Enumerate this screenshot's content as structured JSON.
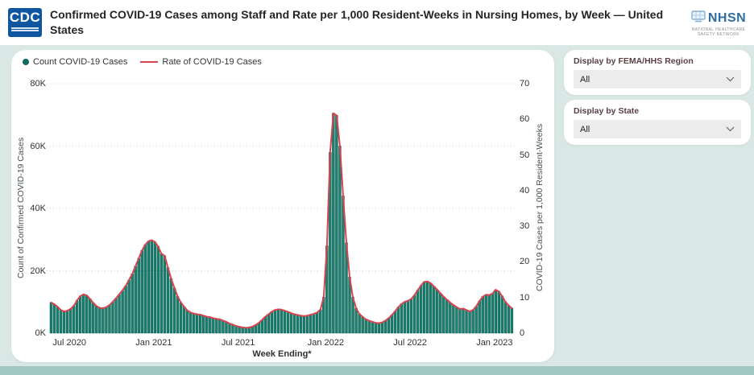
{
  "header": {
    "title": "Confirmed COVID-19 Cases among Staff and Rate per 1,000 Resident-Weeks in Nursing Homes, by Week — United States",
    "cdc_logo_text": "CDC",
    "nhsn_logo_text": "NHSN",
    "nhsn_logo_subtext": "NATIONAL HEALTHCARE SAFETY NETWORK"
  },
  "filters": {
    "region": {
      "label": "Display by FEMA/HHS Region",
      "value": "All"
    },
    "state": {
      "label": "Display by State",
      "value": "All"
    }
  },
  "chart_data": {
    "type": "combo-bar-line",
    "legend": [
      {
        "label": "Count COVID-19 Cases",
        "marker": "dot",
        "color": "#0d6a5d"
      },
      {
        "label": "Rate of COVID-19 Cases",
        "marker": "line",
        "color": "#d64550"
      }
    ],
    "xlabel": "Week Ending*",
    "x_ticks": [
      "Jul 2020",
      "Jan 2021",
      "Jul 2021",
      "Jan 2022",
      "Jul 2022",
      "Jan 2023"
    ],
    "x_tick_weeks": [
      6,
      32,
      58,
      85,
      111,
      137
    ],
    "left_axis": {
      "label": "Count of Confirmed COVID-19 Cases",
      "ticks": [
        "0K",
        "20K",
        "40K",
        "60K",
        "80K"
      ],
      "min": 0,
      "max": 80000
    },
    "right_axis": {
      "label": "COVID-19 Cases per 1,000 Resident-Weeks",
      "ticks": [
        "0",
        "10",
        "20",
        "30",
        "40",
        "50",
        "60",
        "70"
      ],
      "min": 0,
      "max": 70
    },
    "grid": "dotted-horizontal",
    "colors": {
      "bar": "#17806e",
      "bar_stroke": "#0b5045",
      "line": "#d64550",
      "gridline": "#cccccc"
    },
    "series": [
      {
        "name": "Count COVID-19 Cases",
        "type": "bar",
        "axis": "left",
        "unit": "cases (thousands)",
        "values_thousands": [
          9.8,
          9.3,
          8.4,
          7.4,
          7.0,
          7.2,
          7.8,
          8.8,
          10.5,
          11.9,
          12.4,
          12.1,
          11.0,
          9.7,
          8.7,
          8.1,
          8.0,
          8.3,
          9.0,
          10.0,
          11.2,
          12.4,
          13.7,
          15.2,
          17.0,
          19.0,
          21.5,
          24.0,
          26.5,
          28.3,
          29.5,
          29.8,
          29.2,
          27.8,
          25.5,
          24.8,
          21.0,
          17.5,
          14.5,
          11.8,
          9.8,
          8.5,
          7.3,
          6.6,
          6.3,
          6.0,
          5.9,
          5.6,
          5.3,
          5.1,
          4.8,
          4.6,
          4.4,
          4.0,
          3.6,
          3.1,
          2.7,
          2.3,
          2.0,
          1.8,
          1.7,
          1.8,
          2.1,
          2.6,
          3.3,
          4.2,
          5.2,
          6.1,
          6.9,
          7.4,
          7.6,
          7.5,
          7.2,
          6.8,
          6.4,
          6.1,
          5.8,
          5.6,
          5.5,
          5.6,
          5.9,
          6.2,
          6.6,
          7.5,
          11.5,
          28.0,
          58.0,
          70.5,
          69.8,
          60.0,
          44.0,
          29.0,
          18.0,
          11.5,
          8.0,
          6.2,
          5.2,
          4.5,
          4.0,
          3.6,
          3.3,
          3.2,
          3.4,
          4.0,
          4.8,
          5.8,
          7.0,
          8.3,
          9.4,
          10.1,
          10.4,
          11.0,
          12.2,
          13.8,
          15.3,
          16.4,
          16.6,
          16.0,
          15.0,
          13.9,
          12.8,
          11.7,
          10.7,
          9.8,
          9.0,
          8.3,
          7.8,
          7.9,
          7.4,
          7.0,
          7.4,
          8.6,
          10.3,
          11.7,
          12.3,
          12.2,
          12.7,
          13.9,
          13.4,
          11.9,
          10.1,
          8.9,
          8.0
        ]
      },
      {
        "name": "Rate of COVID-19 Cases",
        "type": "line",
        "axis": "right",
        "unit": "per 1,000 resident-weeks",
        "values": [
          8.6,
          8.1,
          7.4,
          6.5,
          6.1,
          6.3,
          6.8,
          7.7,
          9.2,
          10.4,
          10.9,
          10.6,
          9.6,
          8.5,
          7.6,
          7.1,
          7.0,
          7.3,
          7.9,
          8.8,
          9.8,
          10.9,
          12.0,
          13.3,
          14.9,
          16.6,
          18.8,
          21.0,
          23.2,
          24.8,
          25.8,
          26.1,
          25.6,
          24.3,
          22.3,
          21.7,
          18.4,
          15.3,
          12.7,
          10.3,
          8.6,
          7.4,
          6.4,
          5.8,
          5.5,
          5.3,
          5.2,
          4.9,
          4.6,
          4.5,
          4.2,
          4.0,
          3.9,
          3.5,
          3.2,
          2.7,
          2.4,
          2.0,
          1.8,
          1.6,
          1.5,
          1.6,
          1.8,
          2.3,
          2.9,
          3.7,
          4.6,
          5.3,
          6.0,
          6.5,
          6.7,
          6.6,
          6.3,
          6.0,
          5.6,
          5.3,
          5.1,
          4.9,
          4.8,
          4.9,
          5.2,
          5.4,
          5.8,
          6.6,
          10.1,
          24.5,
          50.8,
          61.7,
          61.1,
          52.5,
          38.5,
          25.4,
          15.8,
          10.1,
          7.0,
          5.4,
          4.6,
          3.9,
          3.5,
          3.2,
          2.9,
          2.8,
          3.0,
          3.5,
          4.2,
          5.1,
          6.1,
          7.3,
          8.2,
          8.8,
          9.1,
          9.6,
          10.7,
          12.1,
          13.4,
          14.4,
          14.5,
          14.0,
          13.1,
          12.2,
          11.2,
          10.2,
          9.4,
          8.6,
          7.9,
          7.3,
          6.8,
          6.9,
          6.5,
          6.1,
          6.5,
          7.5,
          9.0,
          10.2,
          10.8,
          10.7,
          11.1,
          12.2,
          11.7,
          10.4,
          8.8,
          7.8,
          7.0
        ]
      }
    ]
  }
}
